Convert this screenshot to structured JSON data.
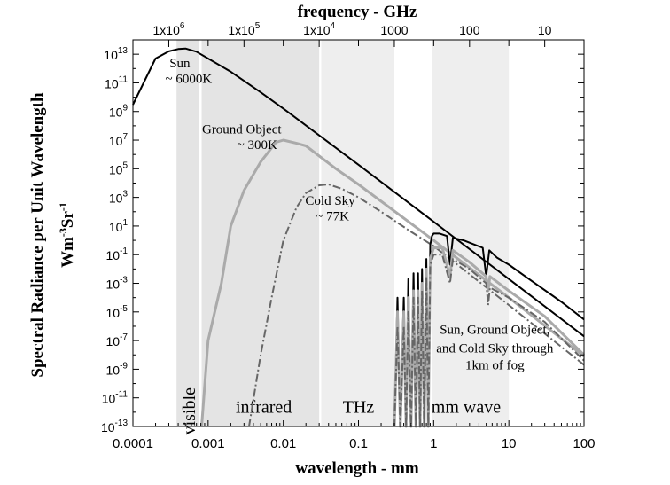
{
  "chart_data": {
    "type": "line",
    "title": "",
    "xlabel": "wavelength - mm",
    "ylabel": "Spectral Radiance per Unit Wavelength",
    "ylabel_units": {
      "base1": "Wm",
      "exp1": "-3",
      "base2": "Sr",
      "exp2": "-1"
    },
    "top_axis_label": "frequency - GHz",
    "x_scale": "log",
    "y_scale": "log",
    "xlim": [
      0.0001,
      100
    ],
    "ylim": [
      1e-13,
      100000000000000.0
    ],
    "grid": false,
    "x_ticks": [
      {
        "value": 0.0001,
        "label": "0.0001"
      },
      {
        "value": 0.001,
        "label": "0.001"
      },
      {
        "value": 0.01,
        "label": "0.01"
      },
      {
        "value": 0.1,
        "label": "0.1"
      },
      {
        "value": 1,
        "label": "1"
      },
      {
        "value": 10,
        "label": "10"
      },
      {
        "value": 100,
        "label": "100"
      }
    ],
    "y_ticks": [
      {
        "exp": 13,
        "base": "10",
        "sup": "13"
      },
      {
        "exp": 11,
        "base": "10",
        "sup": "11"
      },
      {
        "exp": 9,
        "base": "10",
        "sup": "9"
      },
      {
        "exp": 7,
        "base": "10",
        "sup": "7"
      },
      {
        "exp": 5,
        "base": "10",
        "sup": "5"
      },
      {
        "exp": 3,
        "base": "10",
        "sup": "3"
      },
      {
        "exp": 1,
        "base": "10",
        "sup": "1"
      },
      {
        "exp": -1,
        "base": "10",
        "sup": "-1"
      },
      {
        "exp": -3,
        "base": "10",
        "sup": "-3"
      },
      {
        "exp": -5,
        "base": "10",
        "sup": "-5"
      },
      {
        "exp": -7,
        "base": "10",
        "sup": "-7"
      },
      {
        "exp": -9,
        "base": "10",
        "sup": "-9"
      },
      {
        "exp": -11,
        "base": "10",
        "sup": "-11"
      },
      {
        "exp": -13,
        "base": "10",
        "sup": "-13"
      }
    ],
    "top_ticks": [
      {
        "ghz": 1000000,
        "label": "1x10",
        "sup": "6"
      },
      {
        "ghz": 100000,
        "label": "1x10",
        "sup": "5"
      },
      {
        "ghz": 10000,
        "label": "1x10",
        "sup": "4"
      },
      {
        "ghz": 1000,
        "label": "1000",
        "sup": ""
      },
      {
        "ghz": 100,
        "label": "100",
        "sup": ""
      },
      {
        "ghz": 10,
        "label": "10",
        "sup": ""
      }
    ],
    "bands": [
      {
        "name": "visible",
        "from": 0.00038,
        "to": 0.00075,
        "color": "#e4e4e4"
      },
      {
        "name": "infrared",
        "from": 0.00082,
        "to": 0.03,
        "color": "#e4e4e4"
      },
      {
        "name": "THz",
        "from": 0.032,
        "to": 0.3,
        "color": "#eeeeee"
      },
      {
        "name": "mm wave",
        "from": 0.3,
        "to": 0.95,
        "color": "#ffffff"
      },
      {
        "name": "mm wave",
        "from": 0.95,
        "to": 10,
        "color": "#eeeeee"
      }
    ],
    "band_labels": [
      {
        "text": "visible",
        "x": 0.00055,
        "y": 1e-11,
        "rotate": true
      },
      {
        "text": "infrared",
        "x": 0.0055,
        "y": 1e-11,
        "rotate": false
      },
      {
        "text": "THz",
        "x": 0.1,
        "y": 1e-11,
        "rotate": false
      },
      {
        "text": "mm wave",
        "x": 2.7,
        "y": 1e-11,
        "rotate": false
      }
    ],
    "series": [
      {
        "name": "Sun ~ 6000K",
        "color": "#000000",
        "dash": "",
        "points": [
          [
            0.0001,
            3000000000.0
          ],
          [
            0.0002,
            5000000000000.0
          ],
          [
            0.0003,
            16000000000000.0
          ],
          [
            0.0004,
            23000000000000.0
          ],
          [
            0.0005,
            25000000000000.0
          ],
          [
            0.0007,
            15000000000000.0
          ],
          [
            0.001,
            5000000000000.0
          ],
          [
            0.002,
            600000000000.0
          ],
          [
            0.005,
            22000000000.0
          ],
          [
            0.01,
            1600000000.0
          ],
          [
            0.1,
            190000.0
          ],
          [
            1,
            20
          ],
          [
            10,
            0.002
          ],
          [
            100,
            2e-07
          ]
        ]
      },
      {
        "name": "Ground Object ~ 300K",
        "color": "#aaaaaa",
        "dash": "",
        "points": [
          [
            0.00082,
            1e-13
          ],
          [
            0.001,
            1e-07
          ],
          [
            0.0015,
            0.001
          ],
          [
            0.002,
            10
          ],
          [
            0.003,
            3000
          ],
          [
            0.005,
            300000
          ],
          [
            0.008,
            7000000.0
          ],
          [
            0.01,
            10000000.0
          ],
          [
            0.015,
            6000000.0
          ],
          [
            0.02,
            4000000.0
          ],
          [
            0.05,
            100000.0
          ],
          [
            0.1,
            8000
          ],
          [
            1,
            1
          ],
          [
            10,
            0.0001
          ],
          [
            100,
            8e-09
          ]
        ]
      },
      {
        "name": "Cold Sky ~ 77K",
        "color": "#666666",
        "dash": "9 3 2 3",
        "points": [
          [
            0.0035,
            1e-13
          ],
          [
            0.005,
            1e-08
          ],
          [
            0.007,
            0.0001
          ],
          [
            0.01,
            1
          ],
          [
            0.015,
            200
          ],
          [
            0.02,
            2000
          ],
          [
            0.03,
            7000
          ],
          [
            0.04,
            8000
          ],
          [
            0.06,
            4000
          ],
          [
            0.1,
            1000
          ],
          [
            0.2,
            100
          ],
          [
            0.5,
            4
          ],
          [
            1,
            0.4
          ],
          [
            10,
            3e-05
          ],
          [
            100,
            2e-09
          ]
        ]
      },
      {
        "name": "Sun through 1km of fog",
        "color": "#000000",
        "dash": "",
        "points": [
          [
            0.3,
            1e-13
          ],
          [
            0.33,
            0.0001
          ],
          [
            0.36,
            1e-13
          ],
          [
            0.4,
            0.0001
          ],
          [
            0.43,
            1e-13
          ],
          [
            0.46,
            0.002
          ],
          [
            0.5,
            1e-13
          ],
          [
            0.54,
            0.005
          ],
          [
            0.58,
            1e-13
          ],
          [
            0.62,
            0.005
          ],
          [
            0.66,
            1e-13
          ],
          [
            0.7,
            0.01
          ],
          [
            0.75,
            1e-13
          ],
          [
            0.8,
            0.05
          ],
          [
            0.85,
            1e-13
          ],
          [
            0.9,
            0.5
          ],
          [
            0.95,
            2
          ],
          [
            1,
            3
          ],
          [
            1.2,
            3
          ],
          [
            1.5,
            2
          ],
          [
            1.65,
            0.02
          ],
          [
            1.8,
            1.5
          ],
          [
            2.5,
            1
          ],
          [
            3.5,
            0.5
          ],
          [
            4.5,
            0.3
          ],
          [
            5,
            0.003
          ],
          [
            5.5,
            0.2
          ],
          [
            7,
            0.06
          ],
          [
            10,
            0.02
          ],
          [
            20,
            0.0015
          ],
          [
            50,
            5e-05
          ],
          [
            100,
            3e-06
          ]
        ]
      },
      {
        "name": "Ground Object through 1km of fog",
        "color": "#aaaaaa",
        "dash": "",
        "points": [
          [
            0.3,
            1e-13
          ],
          [
            0.33,
            1e-05
          ],
          [
            0.36,
            1e-13
          ],
          [
            0.4,
            1e-05
          ],
          [
            0.43,
            1e-13
          ],
          [
            0.46,
            0.0001
          ],
          [
            0.5,
            1e-13
          ],
          [
            0.54,
            0.0003
          ],
          [
            0.58,
            1e-13
          ],
          [
            0.62,
            0.0003
          ],
          [
            0.66,
            1e-13
          ],
          [
            0.7,
            0.001
          ],
          [
            0.75,
            1e-13
          ],
          [
            0.8,
            0.01
          ],
          [
            0.85,
            1e-13
          ],
          [
            0.9,
            0.05
          ],
          [
            1,
            0.3
          ],
          [
            1.3,
            0.3
          ],
          [
            1.65,
            0.003
          ],
          [
            1.8,
            0.2
          ],
          [
            3,
            0.03
          ],
          [
            5,
            0.003
          ],
          [
            5.3,
            0.0003
          ],
          [
            5.6,
            0.003
          ],
          [
            10,
            0.0003
          ],
          [
            30,
            5e-06
          ],
          [
            100,
            1e-08
          ]
        ]
      },
      {
        "name": "Cold Sky through 1km of fog",
        "color": "#666666",
        "dash": "9 3 2 3",
        "points": [
          [
            0.3,
            1e-13
          ],
          [
            0.33,
            1e-06
          ],
          [
            0.36,
            1e-13
          ],
          [
            0.4,
            1e-06
          ],
          [
            0.43,
            1e-13
          ],
          [
            0.46,
            1e-05
          ],
          [
            0.5,
            1e-13
          ],
          [
            0.54,
            0.0001
          ],
          [
            0.58,
            1e-13
          ],
          [
            0.62,
            0.0001
          ],
          [
            0.66,
            1e-13
          ],
          [
            0.7,
            0.0003
          ],
          [
            0.75,
            1e-13
          ],
          [
            0.8,
            0.003
          ],
          [
            0.85,
            1e-13
          ],
          [
            0.9,
            0.02
          ],
          [
            1,
            0.1
          ],
          [
            1.3,
            0.1
          ],
          [
            1.65,
            0.001
          ],
          [
            1.8,
            0.05
          ],
          [
            3,
            0.01
          ],
          [
            5,
            0.001
          ],
          [
            5.3,
            3e-05
          ],
          [
            5.6,
            0.0005
          ],
          [
            10,
            0.0001
          ],
          [
            30,
            2e-06
          ],
          [
            100,
            4e-09
          ]
        ]
      }
    ],
    "annotations": [
      {
        "text": "Sun",
        "x": 0.00042,
        "y": 1200000000000.0
      },
      {
        "text": "~ 6000K",
        "x": 0.00055,
        "y": 100000000000.0
      },
      {
        "text": "Ground Object",
        "x": 0.0028,
        "y": 30000000.0
      },
      {
        "text": "~ 300K",
        "x": 0.0045,
        "y": 2500000.0
      },
      {
        "text": "Cold Sky",
        "x": 0.042,
        "y": 300
      },
      {
        "text": "~ 77K",
        "x": 0.045,
        "y": 25
      },
      {
        "text": "Sun, Ground Object,",
        "x": 6.5,
        "y": 3e-07
      },
      {
        "text": "and Cold Sky through",
        "x": 6.5,
        "y": 1.5e-08
      },
      {
        "text": "1km of fog",
        "x": 6.5,
        "y": 1e-09
      }
    ]
  }
}
